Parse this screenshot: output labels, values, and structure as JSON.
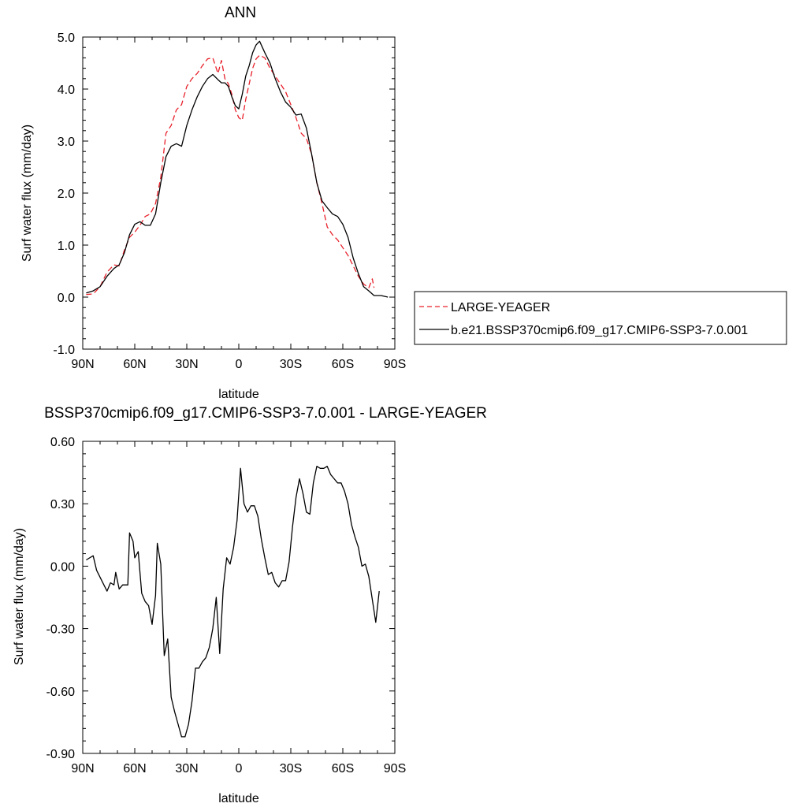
{
  "chart_data": [
    {
      "type": "line",
      "title": "ANN",
      "xlabel": "latitude",
      "ylabel": "Surf water flux (mm/day)",
      "xlim": [
        90,
        -90
      ],
      "ylim": [
        -1.0,
        5.0
      ],
      "xticks": [
        {
          "value": 90,
          "label": "90N"
        },
        {
          "value": 60,
          "label": "60N"
        },
        {
          "value": 30,
          "label": "30N"
        },
        {
          "value": 0,
          "label": "0"
        },
        {
          "value": -30,
          "label": "30S"
        },
        {
          "value": -60,
          "label": "60S"
        },
        {
          "value": -90,
          "label": "90S"
        }
      ],
      "yticks": [
        {
          "value": 5.0,
          "label": "5.0"
        },
        {
          "value": 4.0,
          "label": "4.0"
        },
        {
          "value": 3.0,
          "label": "3.0"
        },
        {
          "value": 2.0,
          "label": "2.0"
        },
        {
          "value": 1.0,
          "label": "1.0"
        },
        {
          "value": 0.0,
          "label": "0.0"
        },
        {
          "value": -1.0,
          "label": "-1.0"
        }
      ],
      "grid": false,
      "legend_position": "right",
      "series": [
        {
          "name": "LARGE-YEAGER",
          "color": "#e8202a",
          "dash": "dashed",
          "points": [
            [
              88,
              0.05
            ],
            [
              84,
              0.06
            ],
            [
              80,
              0.2
            ],
            [
              76,
              0.48
            ],
            [
              72,
              0.62
            ],
            [
              69,
              0.6
            ],
            [
              66,
              0.9
            ],
            [
              63,
              1.15
            ],
            [
              60,
              1.25
            ],
            [
              57,
              1.38
            ],
            [
              54,
              1.55
            ],
            [
              51,
              1.6
            ],
            [
              48,
              1.8
            ],
            [
              45,
              2.3
            ],
            [
              42,
              3.15
            ],
            [
              39,
              3.3
            ],
            [
              36,
              3.6
            ],
            [
              33,
              3.7
            ],
            [
              30,
              4.05
            ],
            [
              27,
              4.2
            ],
            [
              24,
              4.3
            ],
            [
              21,
              4.45
            ],
            [
              18,
              4.58
            ],
            [
              15,
              4.6
            ],
            [
              12,
              4.3
            ],
            [
              10,
              4.55
            ],
            [
              8,
              4.2
            ],
            [
              6,
              4.1
            ],
            [
              4,
              3.9
            ],
            [
              2,
              3.6
            ],
            [
              0,
              3.45
            ],
            [
              -2,
              3.4
            ],
            [
              -4,
              3.8
            ],
            [
              -6,
              4.1
            ],
            [
              -8,
              4.4
            ],
            [
              -10,
              4.58
            ],
            [
              -12,
              4.65
            ],
            [
              -15,
              4.6
            ],
            [
              -18,
              4.4
            ],
            [
              -21,
              4.25
            ],
            [
              -24,
              4.1
            ],
            [
              -27,
              3.95
            ],
            [
              -30,
              3.7
            ],
            [
              -33,
              3.45
            ],
            [
              -36,
              3.15
            ],
            [
              -39,
              3.05
            ],
            [
              -42,
              2.75
            ],
            [
              -45,
              2.2
            ],
            [
              -48,
              1.8
            ],
            [
              -51,
              1.35
            ],
            [
              -54,
              1.2
            ],
            [
              -57,
              1.1
            ],
            [
              -60,
              0.95
            ],
            [
              -63,
              0.8
            ],
            [
              -66,
              0.6
            ],
            [
              -69,
              0.4
            ],
            [
              -72,
              0.25
            ],
            [
              -75,
              0.18
            ],
            [
              -77,
              0.35
            ],
            [
              -78,
              0.18
            ]
          ]
        },
        {
          "name": "b.e21.BSSP370cmip6.f09_g17.CMIP6-SSP3-7.0.001",
          "color": "#000000",
          "dash": "solid",
          "points": [
            [
              88,
              0.08
            ],
            [
              84,
              0.12
            ],
            [
              80,
              0.2
            ],
            [
              76,
              0.4
            ],
            [
              72,
              0.55
            ],
            [
              69,
              0.62
            ],
            [
              66,
              0.85
            ],
            [
              63,
              1.2
            ],
            [
              60,
              1.4
            ],
            [
              57,
              1.45
            ],
            [
              54,
              1.38
            ],
            [
              51,
              1.38
            ],
            [
              48,
              1.6
            ],
            [
              45,
              2.2
            ],
            [
              42,
              2.7
            ],
            [
              39,
              2.9
            ],
            [
              36,
              2.95
            ],
            [
              33,
              2.9
            ],
            [
              30,
              3.3
            ],
            [
              27,
              3.6
            ],
            [
              24,
              3.85
            ],
            [
              21,
              4.05
            ],
            [
              18,
              4.2
            ],
            [
              15,
              4.28
            ],
            [
              12,
              4.18
            ],
            [
              10,
              4.12
            ],
            [
              8,
              4.12
            ],
            [
              6,
              4.05
            ],
            [
              4,
              3.85
            ],
            [
              2,
              3.68
            ],
            [
              0,
              3.62
            ],
            [
              -2,
              3.9
            ],
            [
              -4,
              4.25
            ],
            [
              -6,
              4.45
            ],
            [
              -8,
              4.7
            ],
            [
              -10,
              4.85
            ],
            [
              -12,
              4.92
            ],
            [
              -15,
              4.7
            ],
            [
              -18,
              4.5
            ],
            [
              -21,
              4.2
            ],
            [
              -24,
              3.95
            ],
            [
              -27,
              3.75
            ],
            [
              -30,
              3.65
            ],
            [
              -33,
              3.5
            ],
            [
              -36,
              3.52
            ],
            [
              -39,
              3.25
            ],
            [
              -42,
              2.75
            ],
            [
              -45,
              2.2
            ],
            [
              -48,
              1.85
            ],
            [
              -51,
              1.72
            ],
            [
              -54,
              1.6
            ],
            [
              -57,
              1.55
            ],
            [
              -60,
              1.4
            ],
            [
              -63,
              1.15
            ],
            [
              -66,
              0.75
            ],
            [
              -69,
              0.45
            ],
            [
              -72,
              0.2
            ],
            [
              -75,
              0.12
            ],
            [
              -78,
              0.03
            ],
            [
              -82,
              0.03
            ],
            [
              -86,
              0.0
            ]
          ]
        }
      ]
    },
    {
      "type": "line",
      "title": "BSSP370cmip6.f09_g17.CMIP6-SSP3-7.0.001 - LARGE-YEAGER",
      "xlabel": "latitude",
      "ylabel": "Surf water flux (mm/day)",
      "xlim": [
        90,
        -90
      ],
      "ylim": [
        -0.9,
        0.6
      ],
      "xticks": [
        {
          "value": 90,
          "label": "90N"
        },
        {
          "value": 60,
          "label": "60N"
        },
        {
          "value": 30,
          "label": "30N"
        },
        {
          "value": 0,
          "label": "0"
        },
        {
          "value": -30,
          "label": "30S"
        },
        {
          "value": -60,
          "label": "60S"
        },
        {
          "value": -90,
          "label": "90S"
        }
      ],
      "yticks": [
        {
          "value": 0.6,
          "label": "0.60"
        },
        {
          "value": 0.3,
          "label": "0.30"
        },
        {
          "value": 0.0,
          "label": "0.00"
        },
        {
          "value": -0.3,
          "label": "-0.30"
        },
        {
          "value": -0.6,
          "label": "-0.60"
        },
        {
          "value": -0.9,
          "label": "-0.90"
        }
      ],
      "grid": false,
      "series": [
        {
          "color": "#000000",
          "dash": "solid",
          "points": [
            [
              88,
              0.03
            ],
            [
              84,
              0.05
            ],
            [
              82,
              -0.02
            ],
            [
              79,
              -0.07
            ],
            [
              76,
              -0.12
            ],
            [
              74,
              -0.08
            ],
            [
              72,
              -0.09
            ],
            [
              71,
              -0.03
            ],
            [
              69,
              -0.11
            ],
            [
              67,
              -0.09
            ],
            [
              64,
              -0.09
            ],
            [
              63,
              0.16
            ],
            [
              61,
              0.12
            ],
            [
              60,
              0.04
            ],
            [
              58,
              0.07
            ],
            [
              56,
              -0.13
            ],
            [
              54,
              -0.17
            ],
            [
              52,
              -0.19
            ],
            [
              50,
              -0.28
            ],
            [
              48,
              -0.14
            ],
            [
              47,
              0.11
            ],
            [
              45,
              0.01
            ],
            [
              43,
              -0.43
            ],
            [
              41,
              -0.35
            ],
            [
              39,
              -0.63
            ],
            [
              37,
              -0.7
            ],
            [
              35,
              -0.76
            ],
            [
              33,
              -0.82
            ],
            [
              31,
              -0.82
            ],
            [
              29,
              -0.76
            ],
            [
              27,
              -0.65
            ],
            [
              25,
              -0.49
            ],
            [
              23,
              -0.49
            ],
            [
              21,
              -0.46
            ],
            [
              19,
              -0.44
            ],
            [
              17,
              -0.39
            ],
            [
              15,
              -0.3
            ],
            [
              13,
              -0.15
            ],
            [
              11,
              -0.42
            ],
            [
              9,
              -0.11
            ],
            [
              7,
              0.04
            ],
            [
              5,
              0.01
            ],
            [
              3,
              0.09
            ],
            [
              1,
              0.22
            ],
            [
              -1,
              0.47
            ],
            [
              -3,
              0.3
            ],
            [
              -5,
              0.26
            ],
            [
              -7,
              0.29
            ],
            [
              -9,
              0.29
            ],
            [
              -11,
              0.24
            ],
            [
              -13,
              0.13
            ],
            [
              -15,
              0.04
            ],
            [
              -17,
              -0.04
            ],
            [
              -19,
              -0.03
            ],
            [
              -21,
              -0.08
            ],
            [
              -23,
              -0.1
            ],
            [
              -25,
              -0.07
            ],
            [
              -27,
              -0.07
            ],
            [
              -29,
              0.02
            ],
            [
              -31,
              0.19
            ],
            [
              -33,
              0.33
            ],
            [
              -35,
              0.42
            ],
            [
              -37,
              0.35
            ],
            [
              -39,
              0.26
            ],
            [
              -41,
              0.25
            ],
            [
              -43,
              0.4
            ],
            [
              -45,
              0.48
            ],
            [
              -47,
              0.47
            ],
            [
              -49,
              0.47
            ],
            [
              -51,
              0.48
            ],
            [
              -53,
              0.44
            ],
            [
              -55,
              0.42
            ],
            [
              -57,
              0.4
            ],
            [
              -59,
              0.4
            ],
            [
              -61,
              0.36
            ],
            [
              -63,
              0.3
            ],
            [
              -65,
              0.2
            ],
            [
              -67,
              0.14
            ],
            [
              -69,
              0.09
            ],
            [
              -71,
              0.0
            ],
            [
              -73,
              0.01
            ],
            [
              -75,
              -0.05
            ],
            [
              -77,
              -0.16
            ],
            [
              -79,
              -0.27
            ],
            [
              -81,
              -0.12
            ]
          ]
        }
      ]
    }
  ]
}
